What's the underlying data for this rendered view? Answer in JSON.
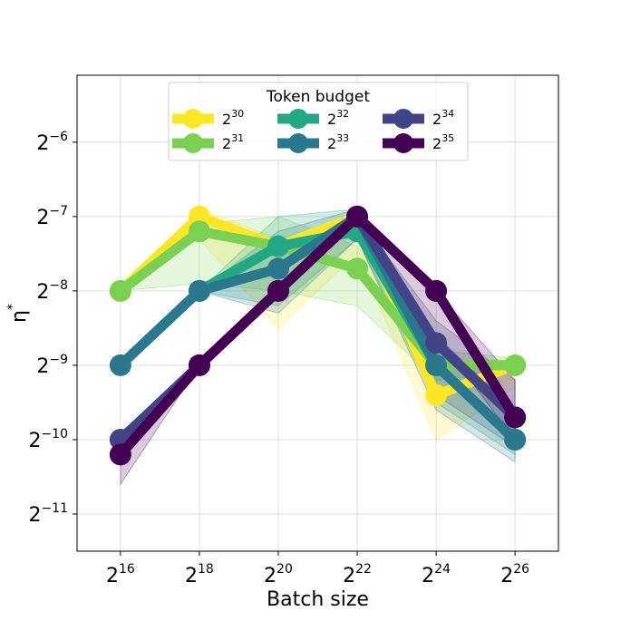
{
  "chart_data": {
    "type": "line",
    "title": "",
    "xlabel": "Batch size",
    "ylabel_base": "η",
    "ylabel_sup": "*",
    "x_log2": [
      16,
      18,
      20,
      22,
      24,
      26
    ],
    "x_tick_labels": [
      {
        "base": "2",
        "exp": "16"
      },
      {
        "base": "2",
        "exp": "18"
      },
      {
        "base": "2",
        "exp": "20"
      },
      {
        "base": "2",
        "exp": "22"
      },
      {
        "base": "2",
        "exp": "24"
      },
      {
        "base": "2",
        "exp": "26"
      }
    ],
    "y_tick_labels": [
      {
        "value": -6,
        "base": "2",
        "exp": "−6"
      },
      {
        "value": -7,
        "base": "2",
        "exp": "−7"
      },
      {
        "value": -8,
        "base": "2",
        "exp": "−8"
      },
      {
        "value": -9,
        "base": "2",
        "exp": "−9"
      },
      {
        "value": -10,
        "base": "2",
        "exp": "−10"
      },
      {
        "value": -11,
        "base": "2",
        "exp": "−11"
      }
    ],
    "xlim_log2": [
      14.9,
      27.1
    ],
    "ylim_log2": [
      -11.5,
      -5.1
    ],
    "grid": true,
    "legend": {
      "title": "Token budget",
      "placement": "upper-center",
      "columns": 3
    },
    "series": [
      {
        "name_base": "2",
        "name_exp": "30",
        "color": "#fde725",
        "x_log2": [
          16,
          18,
          20,
          22,
          24,
          26
        ],
        "y_log2": [
          -8,
          -7,
          -7.4,
          -7,
          -9.4,
          -9
        ],
        "band": {
          "x_log2": [
            18,
            20,
            22,
            24,
            26
          ],
          "low": [
            -7.3,
            -8.5,
            -7.5,
            -10,
            -9.3
          ],
          "high": [
            -6.9,
            -7.3,
            -7,
            -9,
            -8.9
          ]
        }
      },
      {
        "name_base": "2",
        "name_exp": "31",
        "color": "#7ad151",
        "x_log2": [
          16,
          18,
          20,
          22,
          24,
          26
        ],
        "y_log2": [
          -8,
          -7.2,
          -7.4,
          -7.7,
          -9,
          -9
        ],
        "band": {
          "x_log2": [
            16,
            18,
            20,
            22,
            24,
            26
          ],
          "low": [
            -8,
            -7.9,
            -8,
            -8.2,
            -9.2,
            -9.1
          ],
          "high": [
            -8,
            -7.1,
            -7,
            -7.4,
            -8.8,
            -8.9
          ]
        }
      },
      {
        "name_base": "2",
        "name_exp": "32",
        "color": "#22a884",
        "x_log2": [
          18,
          20,
          22,
          24,
          26
        ],
        "y_log2": [
          -8,
          -7.4,
          -7.2,
          -9,
          -10
        ],
        "band": {
          "x_log2": [
            18,
            20,
            22,
            24,
            26
          ],
          "low": [
            -8,
            -8.2,
            -7.3,
            -9.5,
            -10.2
          ],
          "high": [
            -8,
            -7,
            -6.9,
            -8.6,
            -9.7
          ]
        }
      },
      {
        "name_base": "2",
        "name_exp": "33",
        "color": "#2a788e",
        "x_log2": [
          16,
          18,
          20,
          22,
          24,
          26
        ],
        "y_log2": [
          -9,
          -8,
          -7.7,
          -7,
          -9,
          -10
        ],
        "band": {
          "x_log2": [
            16,
            18,
            20,
            22,
            24,
            26
          ],
          "low": [
            -9,
            -8,
            -8.3,
            -7.3,
            -9.6,
            -10.3
          ],
          "high": [
            -9,
            -8,
            -7.2,
            -6.9,
            -8.6,
            -9.6
          ]
        }
      },
      {
        "name_base": "2",
        "name_exp": "34",
        "color": "#414487",
        "x_log2": [
          16,
          18,
          20,
          22,
          24,
          26
        ],
        "y_log2": [
          -10,
          -9,
          -8,
          -7,
          -8.7,
          -9.7
        ],
        "band": {
          "x_log2": [
            16,
            18,
            20,
            22,
            24,
            26
          ],
          "low": [
            -10.1,
            -9,
            -8,
            -7,
            -9.4,
            -10.1
          ],
          "high": [
            -9.9,
            -9,
            -8,
            -7,
            -8.4,
            -9.2
          ]
        }
      },
      {
        "name_base": "2",
        "name_exp": "35",
        "color": "#440154",
        "x_log2": [
          16,
          18,
          20,
          22,
          24,
          26
        ],
        "y_log2": [
          -10.2,
          -9,
          -8,
          -7,
          -8,
          -9.7
        ],
        "band": {
          "x_log2": [
            16,
            18,
            20,
            22,
            24,
            26
          ],
          "low": [
            -10.6,
            -9,
            -8,
            -7,
            -8.6,
            -10
          ],
          "high": [
            -10.1,
            -9,
            -8,
            -7,
            -8,
            -9.2
          ]
        }
      }
    ]
  }
}
